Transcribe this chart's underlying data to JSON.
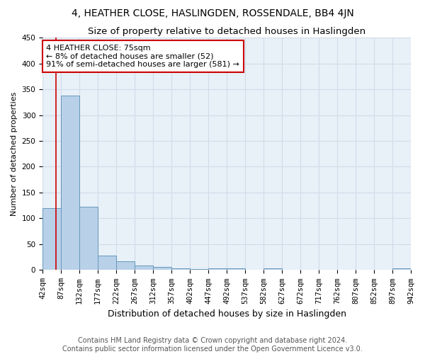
{
  "title": "4, HEATHER CLOSE, HASLINGDEN, ROSSENDALE, BB4 4JN",
  "subtitle": "Size of property relative to detached houses in Haslingden",
  "xlabel": "Distribution of detached houses by size in Haslingden",
  "ylabel": "Number of detached properties",
  "bins": [
    42,
    87,
    132,
    177,
    222,
    267,
    312,
    357,
    402,
    447,
    492,
    537,
    582,
    627,
    672,
    717,
    762,
    807,
    852,
    897,
    942
  ],
  "values": [
    120,
    338,
    122,
    28,
    17,
    9,
    6,
    4,
    2,
    3,
    3,
    0,
    4,
    0,
    0,
    0,
    0,
    0,
    0,
    4
  ],
  "bar_color": "#b8d0e8",
  "bar_edge_color": "#6699bb",
  "property_size": 75,
  "property_line_color": "#cc0000",
  "annotation_line1": "4 HEATHER CLOSE: 75sqm",
  "annotation_line2": "← 8% of detached houses are smaller (52)",
  "annotation_line3": "91% of semi-detached houses are larger (581) →",
  "annotation_box_color": "#ffffff",
  "annotation_box_edge_color": "#cc0000",
  "ylim": [
    0,
    450
  ],
  "yticks": [
    0,
    50,
    100,
    150,
    200,
    250,
    300,
    350,
    400,
    450
  ],
  "grid_color": "#d0dde8",
  "bg_color": "#e8f0f8",
  "footer_line1": "Contains HM Land Registry data © Crown copyright and database right 2024.",
  "footer_line2": "Contains public sector information licensed under the Open Government Licence v3.0.",
  "title_fontsize": 10,
  "subtitle_fontsize": 9.5,
  "xlabel_fontsize": 9,
  "ylabel_fontsize": 8,
  "tick_fontsize": 7.5,
  "annotation_fontsize": 8,
  "footer_fontsize": 7
}
